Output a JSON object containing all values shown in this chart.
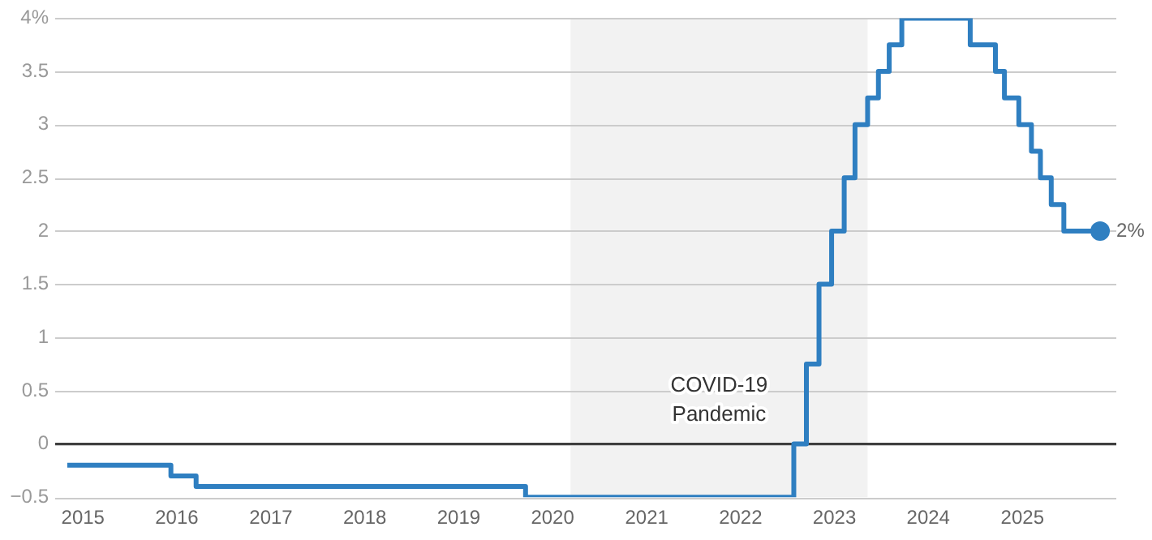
{
  "chart_data": {
    "type": "step",
    "x": [
      "2014-11-01",
      "2015-12-09",
      "2016-03-16",
      "2019-09-18",
      "2022-07-27",
      "2022-09-14",
      "2022-11-02",
      "2022-12-21",
      "2023-02-08",
      "2023-03-22",
      "2023-05-10",
      "2023-06-21",
      "2023-08-02",
      "2023-09-20",
      "2024-06-12",
      "2024-09-18",
      "2024-10-23",
      "2024-12-18",
      "2025-02-05",
      "2025-03-12",
      "2025-04-23",
      "2025-06-11",
      "2025-10-30"
    ],
    "series": [
      {
        "color": "#2f7fc1",
        "values": [
          -0.2,
          -0.3,
          -0.4,
          -0.5,
          0,
          0.75,
          1.5,
          2,
          2.5,
          3,
          3.25,
          3.5,
          3.75,
          4,
          3.75,
          3.5,
          3.25,
          3,
          2.75,
          2.5,
          2.25,
          2,
          2
        ]
      }
    ],
    "xlim": [
      "2014-09-15",
      "2026-01-01"
    ],
    "xticks": [
      "2015",
      "2016",
      "2017",
      "2018",
      "2019",
      "2020",
      "2021",
      "2022",
      "2023",
      "2024",
      "2025"
    ],
    "ylim": [
      -0.5,
      4
    ],
    "yticks": [
      {
        "value": -0.5,
        "label": "−0.5"
      },
      0,
      0.5,
      1,
      1.5,
      2,
      2.5,
      3,
      3.5,
      {
        "value": 4,
        "label": "4%"
      }
    ],
    "grid": "y",
    "legend": false,
    "marker": "none",
    "line_style": "solid",
    "ref_lines": [
      {
        "axis": "y",
        "value": 0,
        "color": "#222222"
      }
    ],
    "bands": [
      {
        "axis": "x",
        "from": "2020-03-11",
        "to": "2023-05-10",
        "label": "COVID-19 Pandemic",
        "color": "#f2f2f2"
      }
    ],
    "annotations": [
      {
        "text": "2%",
        "x": "2025-10-30",
        "y": 2
      }
    ]
  }
}
